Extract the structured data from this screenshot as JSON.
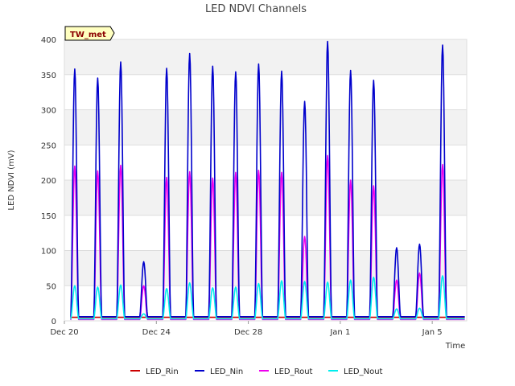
{
  "chart_data": {
    "type": "line",
    "title": "LED NDVI Channels",
    "xlabel": "Time",
    "ylabel": "LED NDVI (mV)",
    "badge": "TW_met",
    "ylim": [
      0,
      400
    ],
    "xlim": [
      "2023-12-20",
      "2024-01-06T12:00"
    ],
    "y_ticks": [
      0,
      50,
      100,
      150,
      200,
      250,
      300,
      350,
      400
    ],
    "x_ticks": [
      {
        "date": "2023-12-20",
        "label": "Dec 20"
      },
      {
        "date": "2023-12-24",
        "label": "Dec 24"
      },
      {
        "date": "2023-12-28",
        "label": "Dec 28"
      },
      {
        "date": "2024-01-01",
        "label": "Jan 1"
      },
      {
        "date": "2024-01-05",
        "label": "Jan 5"
      }
    ],
    "grid": true,
    "legend_position": "bottom",
    "series": [
      {
        "name": "LED_Rin",
        "color": "#cc0000"
      },
      {
        "name": "LED_Nin",
        "color": "#0000cc"
      },
      {
        "name": "LED_Rout",
        "color": "#ee00ee"
      },
      {
        "name": "LED_Nout",
        "color": "#00eeee"
      }
    ],
    "daily_peaks": [
      {
        "date": "2023-12-20",
        "LED_Rin": 5,
        "LED_Nin": 358,
        "LED_Rout": 220,
        "LED_Nout": 50
      },
      {
        "date": "2023-12-21",
        "LED_Rin": 5,
        "LED_Nin": 345,
        "LED_Rout": 213,
        "LED_Nout": 48
      },
      {
        "date": "2023-12-22",
        "LED_Rin": 5,
        "LED_Nin": 368,
        "LED_Rout": 221,
        "LED_Nout": 51
      },
      {
        "date": "2023-12-23",
        "LED_Rin": 5,
        "LED_Nin": 84,
        "LED_Rout": 50,
        "LED_Nout": 10
      },
      {
        "date": "2023-12-24",
        "LED_Rin": 5,
        "LED_Nin": 359,
        "LED_Rout": 204,
        "LED_Nout": 46
      },
      {
        "date": "2023-12-25",
        "LED_Rin": 5,
        "LED_Nin": 380,
        "LED_Rout": 212,
        "LED_Nout": 54
      },
      {
        "date": "2023-12-26",
        "LED_Rin": 5,
        "LED_Nin": 362,
        "LED_Rout": 203,
        "LED_Nout": 47
      },
      {
        "date": "2023-12-27",
        "LED_Rin": 5,
        "LED_Nin": 354,
        "LED_Rout": 211,
        "LED_Nout": 48
      },
      {
        "date": "2023-12-28",
        "LED_Rin": 5,
        "LED_Nin": 365,
        "LED_Rout": 214,
        "LED_Nout": 53
      },
      {
        "date": "2023-12-29",
        "LED_Rin": 5,
        "LED_Nin": 355,
        "LED_Rout": 211,
        "LED_Nout": 57
      },
      {
        "date": "2023-12-30",
        "LED_Rin": 5,
        "LED_Nin": 312,
        "LED_Rout": 120,
        "LED_Nout": 56
      },
      {
        "date": "2023-12-31",
        "LED_Rin": 5,
        "LED_Nin": 397,
        "LED_Rout": 235,
        "LED_Nout": 55
      },
      {
        "date": "2024-01-01",
        "LED_Rin": 5,
        "LED_Nin": 356,
        "LED_Rout": 200,
        "LED_Nout": 58
      },
      {
        "date": "2024-01-02",
        "LED_Rin": 5,
        "LED_Nin": 342,
        "LED_Rout": 192,
        "LED_Nout": 62
      },
      {
        "date": "2024-01-03",
        "LED_Rin": 5,
        "LED_Nin": 104,
        "LED_Rout": 58,
        "LED_Nout": 17
      },
      {
        "date": "2024-01-04",
        "LED_Rin": 5,
        "LED_Nin": 109,
        "LED_Rout": 68,
        "LED_Nout": 18
      },
      {
        "date": "2024-01-05",
        "LED_Rin": 5,
        "LED_Nin": 392,
        "LED_Rout": 222,
        "LED_Nout": 64
      }
    ],
    "night_baseline": {
      "LED_Rin": 5,
      "LED_Nin": 6,
      "LED_Rout": 2,
      "LED_Nout": 3
    },
    "data_end": "2024-01-06T10:00"
  }
}
